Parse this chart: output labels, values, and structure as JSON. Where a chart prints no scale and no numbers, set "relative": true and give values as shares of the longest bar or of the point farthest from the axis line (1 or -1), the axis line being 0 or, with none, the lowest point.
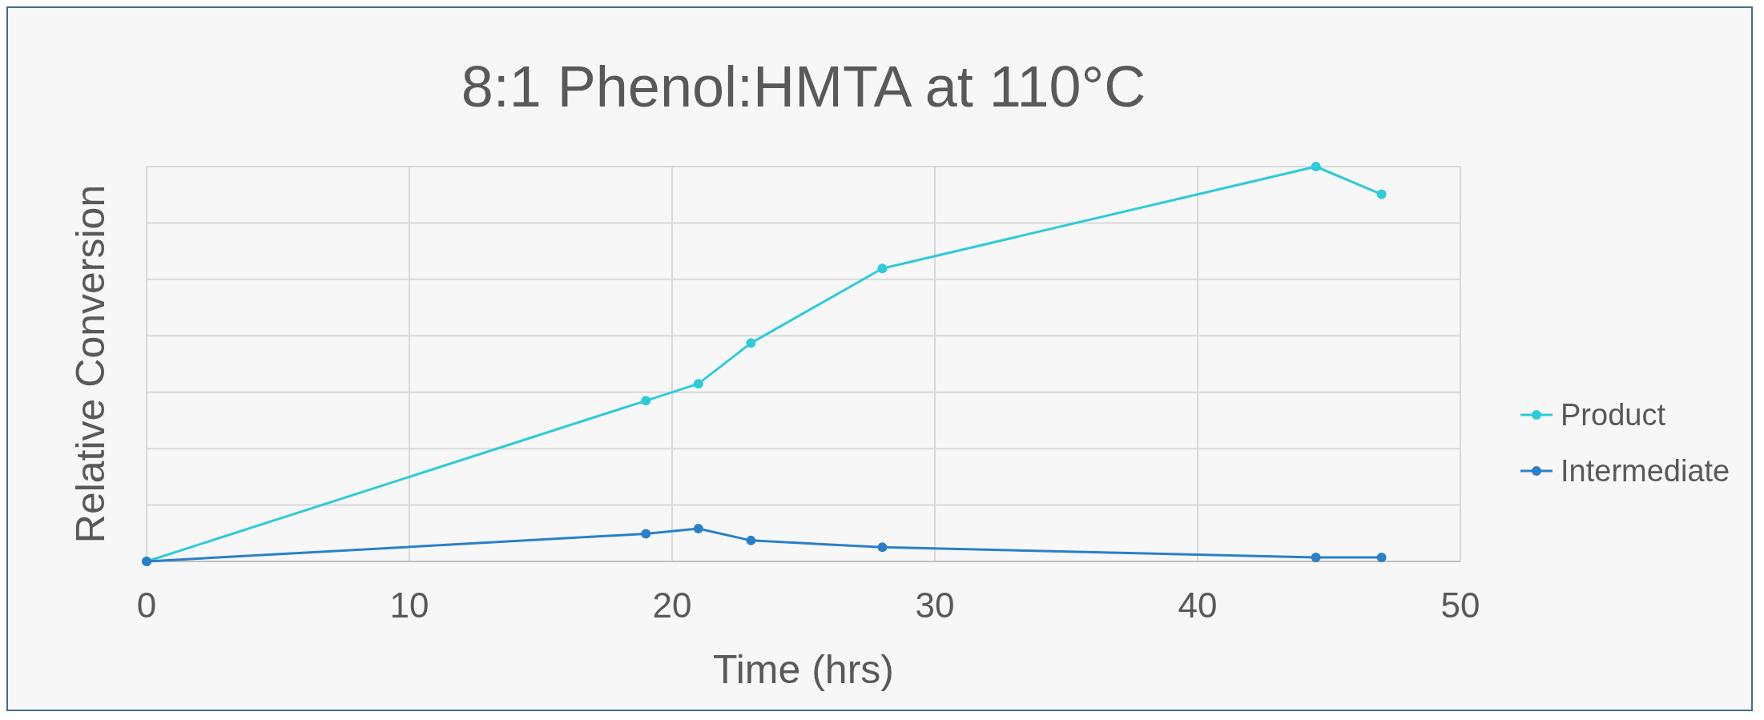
{
  "chart_data": {
    "type": "line",
    "title": "8:1 Phenol:HMTA at 110°C",
    "xlabel": "Time (hrs)",
    "ylabel": "Relative Conversion",
    "relative": true,
    "xlim": [
      0,
      50
    ],
    "xticks": [
      0,
      10,
      20,
      30,
      40,
      50
    ],
    "grid": true,
    "legend": "right",
    "marker": "circle",
    "series": [
      {
        "name": "Product",
        "color": "#2ecbd8",
        "x": [
          0,
          19,
          21,
          23,
          28,
          44.5,
          47
        ],
        "values": [
          0,
          0.407,
          0.45,
          0.553,
          0.742,
          1,
          0.93
        ]
      },
      {
        "name": "Intermediate",
        "color": "#2a80c8",
        "x": [
          0,
          19,
          21,
          23,
          28,
          44.5,
          47
        ],
        "values": [
          0,
          0.07,
          0.083,
          0.053,
          0.036,
          0.01,
          0.01
        ]
      }
    ]
  }
}
